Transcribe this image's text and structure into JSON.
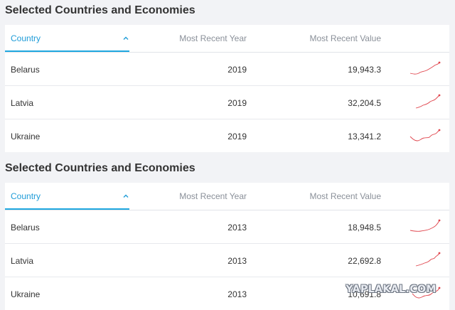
{
  "tables": [
    {
      "title": "Selected Countries and Economies",
      "columns": {
        "country": "Country",
        "year": "Most Recent Year",
        "value": "Most Recent Value"
      },
      "rows": [
        {
          "country": "Belarus",
          "year": "2019",
          "value": "19,943.3"
        },
        {
          "country": "Latvia",
          "year": "2019",
          "value": "32,204.5"
        },
        {
          "country": "Ukraine",
          "year": "2019",
          "value": "13,341.2"
        }
      ]
    },
    {
      "title": "Selected Countries and Economies",
      "columns": {
        "country": "Country",
        "year": "Most Recent Year",
        "value": "Most Recent Value"
      },
      "rows": [
        {
          "country": "Belarus",
          "year": "2013",
          "value": "18,948.5"
        },
        {
          "country": "Latvia",
          "year": "2013",
          "value": "22,692.8"
        },
        {
          "country": "Ukraine",
          "year": "2013",
          "value": "10,691.8"
        }
      ]
    }
  ],
  "sort_icon": "chevron-up-icon",
  "sparkline_icon": "sparkline-trend-icon",
  "accent_color": "#1fa8e0",
  "sparkline_color": "#e0454d",
  "watermark": "YAPLAKAL.COM"
}
